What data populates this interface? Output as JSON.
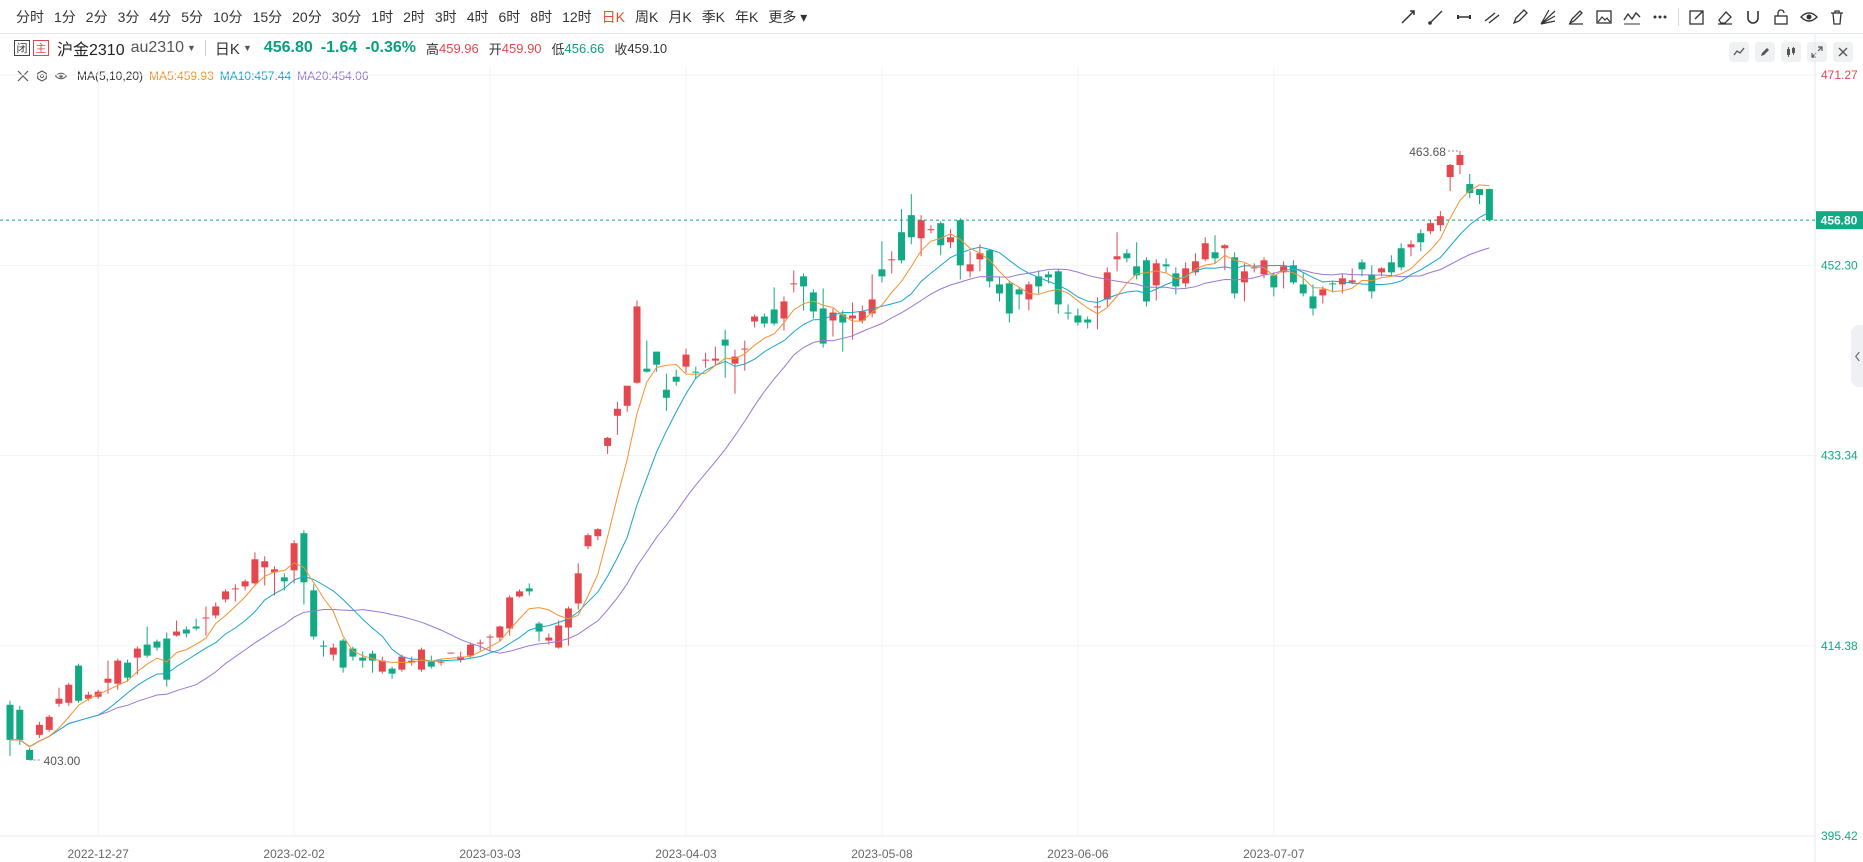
{
  "toolbar": {
    "periods": [
      "分时",
      "1分",
      "2分",
      "3分",
      "4分",
      "5分",
      "10分",
      "15分",
      "20分",
      "30分",
      "1时",
      "2时",
      "3时",
      "4时",
      "6时",
      "8时",
      "12时",
      "日K",
      "周K",
      "月K",
      "季K",
      "年K",
      "更多"
    ],
    "active_period": "日K",
    "tools": [
      "trend-line-icon",
      "ray-icon",
      "segment-icon",
      "parallel-channel-icon",
      "pen-icon",
      "fan-icon",
      "brush-icon",
      "image-icon",
      "wave-icon",
      "more-icon",
      "edit-icon",
      "eraser-icon",
      "magnet-icon",
      "lock-icon",
      "eye-icon",
      "trash-icon"
    ]
  },
  "info": {
    "btn_a": "闭",
    "btn_b": "主",
    "name": "沪金2310",
    "code": "au2310",
    "period": "日K",
    "last": "456.80",
    "change": "-1.64",
    "change_pct": "-0.36%",
    "high_label": "高",
    "high": "459.96",
    "open_label": "开",
    "open": "459.90",
    "low_label": "低",
    "low": "456.66",
    "close_label": "收",
    "close": "459.10"
  },
  "indicator": {
    "name": "MA(5,10,20)",
    "ma5": "MA5:459.93",
    "ma10": "MA10:457.44",
    "ma20": "MA20:454.06"
  },
  "colors": {
    "up": "#e5474f",
    "down": "#12a985",
    "ma5": "#f39232",
    "ma10": "#18a6c9",
    "ma20": "#9a77d6",
    "active_period": "#f04b2f"
  },
  "chart_data": {
    "type": "candlestick",
    "y_ticks": [
      "471.27",
      "452.30",
      "433.34",
      "414.38",
      "395.42"
    ],
    "y_range": [
      395.42,
      471.27
    ],
    "last_price_label": "456.80",
    "x_labels": [
      "2022-12-27",
      "2023-02-02",
      "2023-03-03",
      "2023-04-03",
      "2023-05-08",
      "2023-06-06",
      "2023-07-07"
    ],
    "x_label_index": [
      9,
      29,
      49,
      69,
      89,
      109,
      129
    ],
    "max_label": "463.68",
    "min_label": "403.00",
    "candles": [
      [
        408.5,
        405.0,
        408.9,
        403.4
      ],
      [
        408.0,
        405.0,
        408.4,
        404.5
      ],
      [
        404.0,
        403.0,
        404.2,
        403.0
      ],
      [
        405.5,
        406.5,
        406.8,
        405.2
      ],
      [
        406.0,
        407.3,
        407.5,
        405.8
      ],
      [
        408.6,
        409.1,
        410.2,
        408.3
      ],
      [
        408.7,
        410.5,
        410.7,
        408.4
      ],
      [
        412.4,
        408.9,
        412.6,
        408.7
      ],
      [
        409.1,
        409.5,
        409.8,
        408.9
      ],
      [
        409.3,
        409.8,
        410.0,
        409.1
      ],
      [
        410.7,
        411.1,
        412.9,
        409.6
      ],
      [
        410.6,
        412.9,
        413.1,
        410.0
      ],
      [
        412.7,
        411.2,
        413.0,
        410.8
      ],
      [
        413.2,
        414.1,
        414.3,
        411.5
      ],
      [
        414.5,
        413.4,
        416.3,
        413.2
      ],
      [
        414.8,
        414.2,
        415.0,
        413.9
      ],
      [
        415.1,
        411.0,
        415.7,
        410.3
      ],
      [
        415.4,
        415.8,
        416.9,
        415.3
      ],
      [
        416.0,
        415.6,
        416.3,
        415.2
      ],
      [
        416.3,
        416.1,
        417.1,
        415.9
      ],
      [
        417.2,
        417.2,
        418.3,
        415.4
      ],
      [
        417.4,
        418.3,
        418.7,
        417.1
      ],
      [
        419.0,
        419.8,
        420.0,
        418.7
      ],
      [
        420.0,
        420.1,
        420.5,
        418.8
      ],
      [
        420.3,
        420.8,
        421.0,
        419.9
      ],
      [
        420.6,
        423.0,
        423.7,
        420.5
      ],
      [
        422.2,
        422.8,
        423.3,
        420.4
      ],
      [
        421.7,
        422.0,
        422.3,
        419.4
      ],
      [
        421.2,
        420.8,
        421.6,
        419.9
      ],
      [
        421.9,
        424.6,
        424.9,
        420.6
      ],
      [
        425.6,
        420.7,
        425.9,
        418.5
      ],
      [
        419.9,
        415.3,
        420.5,
        415.0
      ],
      [
        414.4,
        414.3,
        414.9,
        413.3
      ],
      [
        413.5,
        414.2,
        414.6,
        412.9
      ],
      [
        414.9,
        412.2,
        415.1,
        411.7
      ],
      [
        414.1,
        413.3,
        414.3,
        412.9
      ],
      [
        413.2,
        412.9,
        413.8,
        412.2
      ],
      [
        413.6,
        412.9,
        413.9,
        411.7
      ],
      [
        411.8,
        412.9,
        413.3,
        411.6
      ],
      [
        412.1,
        411.6,
        412.3,
        411.1
      ],
      [
        412.0,
        413.3,
        413.5,
        411.8
      ],
      [
        412.7,
        412.9,
        413.3,
        412.4
      ],
      [
        412.0,
        414.0,
        414.2,
        411.8
      ],
      [
        412.8,
        412.3,
        413.4,
        412.1
      ],
      [
        412.7,
        412.8,
        413.0,
        412.4
      ],
      [
        413.7,
        413.7,
        413.7,
        413.6
      ],
      [
        413.0,
        413.3,
        413.8,
        412.7
      ],
      [
        413.4,
        414.5,
        414.7,
        413.2
      ],
      [
        414.6,
        414.7,
        415.0,
        413.9
      ],
      [
        415.3,
        415.3,
        415.5,
        413.9
      ],
      [
        415.2,
        416.3,
        416.4,
        414.8
      ],
      [
        416.1,
        419.2,
        419.4,
        415.4
      ],
      [
        419.3,
        419.8,
        420.0,
        419.2
      ],
      [
        420.1,
        419.8,
        420.6,
        419.4
      ],
      [
        416.6,
        415.8,
        416.8,
        414.8
      ],
      [
        414.9,
        415.2,
        415.6,
        414.5
      ],
      [
        414.2,
        416.4,
        416.9,
        414.1
      ],
      [
        416.2,
        418.1,
        418.3,
        414.4
      ],
      [
        418.6,
        421.6,
        422.6,
        418.0
      ],
      [
        424.3,
        425.4,
        425.6,
        424.0
      ],
      [
        425.3,
        426.0,
        426.1,
        424.9
      ],
      [
        434.3,
        435.1,
        435.2,
        433.5
      ],
      [
        437.3,
        438.0,
        438.7,
        435.4
      ],
      [
        438.3,
        440.3,
        440.2,
        437.7
      ],
      [
        440.6,
        448.2,
        448.8,
        440.5
      ],
      [
        442.0,
        441.7,
        444.8,
        441.6
      ],
      [
        443.7,
        442.4,
        443.5,
        441.7
      ],
      [
        439.9,
        439.1,
        441.5,
        437.8
      ],
      [
        441.2,
        440.7,
        441.9,
        440.3
      ],
      [
        442.2,
        443.4,
        444.0,
        441.6
      ],
      [
        441.7,
        441.6,
        442.2,
        441.0
      ],
      [
        442.8,
        442.9,
        443.6,
        442.1
      ],
      [
        442.8,
        443.0,
        444.2,
        442.3
      ],
      [
        444.9,
        444.3,
        445.9,
        441.1
      ],
      [
        442.5,
        443.2,
        443.9,
        439.5
      ],
      [
        443.9,
        444.0,
        444.8,
        441.8
      ],
      [
        446.7,
        447.2,
        447.4,
        446.1
      ],
      [
        447.2,
        446.5,
        447.5,
        446.1
      ],
      [
        447.9,
        446.5,
        450.1,
        446.3
      ],
      [
        447.0,
        448.7,
        449.2,
        445.8
      ],
      [
        450.4,
        450.5,
        451.8,
        449.6
      ],
      [
        451.2,
        450.2,
        451.5,
        447.8
      ],
      [
        449.6,
        447.7,
        449.9,
        447.0
      ],
      [
        448.0,
        444.5,
        450.0,
        444.1
      ],
      [
        446.8,
        447.6,
        448.0,
        445.2
      ],
      [
        447.4,
        446.6,
        447.8,
        443.7
      ],
      [
        447.0,
        447.3,
        448.6,
        444.9
      ],
      [
        446.8,
        447.7,
        448.3,
        446.5
      ],
      [
        447.5,
        448.9,
        451.4,
        447.1
      ],
      [
        451.9,
        451.2,
        454.7,
        450.6
      ],
      [
        452.8,
        452.9,
        453.7,
        451.5
      ],
      [
        455.6,
        452.8,
        457.9,
        452.5
      ],
      [
        457.3,
        455.1,
        459.4,
        454.4
      ],
      [
        455.0,
        456.8,
        457.3,
        453.2
      ],
      [
        455.9,
        455.9,
        456.3,
        455.5
      ],
      [
        456.5,
        454.3,
        456.7,
        453.3
      ],
      [
        454.6,
        455.1,
        455.9,
        454.0
      ],
      [
        456.8,
        452.3,
        457.0,
        450.9
      ],
      [
        451.7,
        452.4,
        453.7,
        451.1
      ],
      [
        452.9,
        453.5,
        454.4,
        451.7
      ],
      [
        453.8,
        450.7,
        453.9,
        450.1
      ],
      [
        450.4,
        449.5,
        451.2,
        448.7
      ],
      [
        450.5,
        447.5,
        450.7,
        446.6
      ],
      [
        449.9,
        449.4,
        450.1,
        447.9
      ],
      [
        448.9,
        450.4,
        450.7,
        447.8
      ],
      [
        451.2,
        450.2,
        451.8,
        449.5
      ],
      [
        451.4,
        451.1,
        451.7,
        450.5
      ],
      [
        451.7,
        448.4,
        451.9,
        447.5
      ],
      [
        447.6,
        447.5,
        448.4,
        446.9
      ],
      [
        447.3,
        446.6,
        448.0,
        446.3
      ],
      [
        446.9,
        446.6,
        447.2,
        446.0
      ],
      [
        448.1,
        448.2,
        449.1,
        445.9
      ],
      [
        448.9,
        451.6,
        452.1,
        448.2
      ],
      [
        452.9,
        453.2,
        455.6,
        451.7
      ],
      [
        453.5,
        453.0,
        453.9,
        452.6
      ],
      [
        452.2,
        451.3,
        454.6,
        450.9
      ],
      [
        452.8,
        448.7,
        453.1,
        448.2
      ],
      [
        450.3,
        452.5,
        452.9,
        448.8
      ],
      [
        452.4,
        452.2,
        453.0,
        451.6
      ],
      [
        451.5,
        450.2,
        452.1,
        449.4
      ],
      [
        450.5,
        452.0,
        452.6,
        450.1
      ],
      [
        451.6,
        452.7,
        453.5,
        451.3
      ],
      [
        452.9,
        454.5,
        455.1,
        452.7
      ],
      [
        453.6,
        453.0,
        455.3,
        452.5
      ],
      [
        454.0,
        454.3,
        454.4,
        451.8
      ],
      [
        453.1,
        449.5,
        453.6,
        449.0
      ],
      [
        450.6,
        451.7,
        452.5,
        448.7
      ],
      [
        452.0,
        452.1,
        452.5,
        451.6
      ],
      [
        451.4,
        452.8,
        453.1,
        451.0
      ],
      [
        451.3,
        450.1,
        451.6,
        449.2
      ],
      [
        451.6,
        452.2,
        452.7,
        450.0
      ],
      [
        452.3,
        450.6,
        452.8,
        450.4
      ],
      [
        450.4,
        449.5,
        451.5,
        449.2
      ],
      [
        449.2,
        448.0,
        450.4,
        447.3
      ],
      [
        449.3,
        449.9,
        450.2,
        448.5
      ],
      [
        450.5,
        450.4,
        450.7,
        449.6
      ],
      [
        450.4,
        451.0,
        451.4,
        449.5
      ],
      [
        450.6,
        450.8,
        452.0,
        450.4
      ],
      [
        452.6,
        451.9,
        452.9,
        451.2
      ],
      [
        451.4,
        449.7,
        452.3,
        449.0
      ],
      [
        451.6,
        452.0,
        452.1,
        451.2
      ],
      [
        452.6,
        451.6,
        453.3,
        451.3
      ],
      [
        454.0,
        452.1,
        454.5,
        451.8
      ],
      [
        454.1,
        454.4,
        454.8,
        453.2
      ],
      [
        455.5,
        454.6,
        455.9,
        453.7
      ],
      [
        455.7,
        456.5,
        456.8,
        455.4
      ],
      [
        456.3,
        457.2,
        457.7,
        455.7
      ],
      [
        461.1,
        462.3,
        462.4,
        459.7
      ],
      [
        462.3,
        463.3,
        463.7,
        461.4
      ],
      [
        460.4,
        459.5,
        461.4,
        459.0
      ],
      [
        459.9,
        459.3,
        459.9,
        458.4
      ],
      [
        459.9,
        456.8,
        459.96,
        456.66
      ]
    ]
  }
}
